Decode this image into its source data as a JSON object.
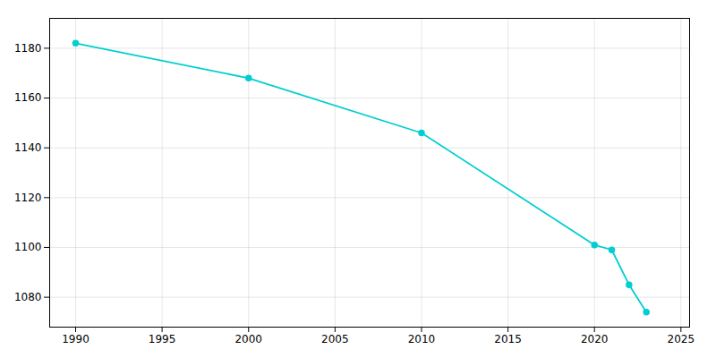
{
  "chart_data": {
    "type": "line",
    "x": [
      1990,
      2000,
      2010,
      2020,
      2021,
      2022,
      2023
    ],
    "values": [
      1182,
      1168,
      1146,
      1101,
      1099,
      1085,
      1074
    ],
    "color": "#00CED1",
    "marker": "circle",
    "xlim": [
      1988.5,
      2025.5
    ],
    "ylim": [
      1068,
      1192
    ],
    "xticks": [
      1990,
      1995,
      2000,
      2005,
      2010,
      2015,
      2020,
      2025
    ],
    "yticks": [
      1080,
      1100,
      1120,
      1140,
      1160,
      1180
    ],
    "grid": true
  }
}
